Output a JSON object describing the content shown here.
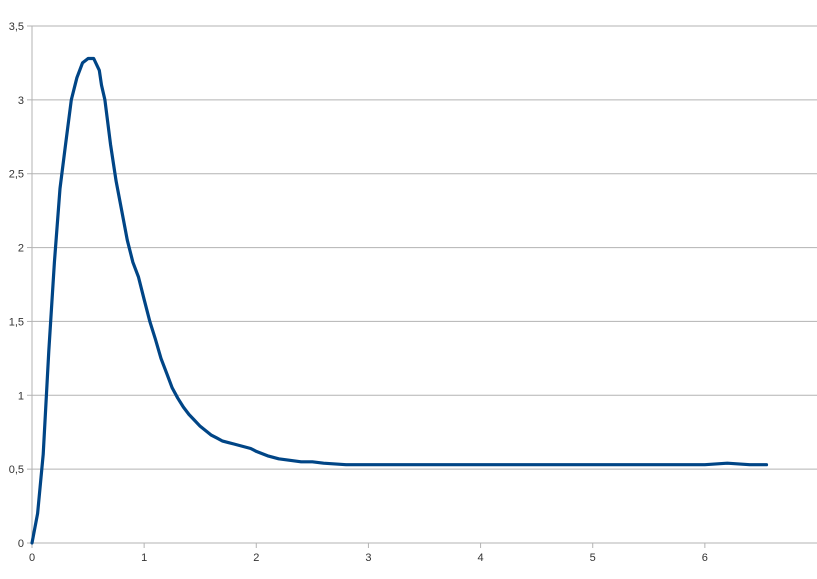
{
  "chart_data": {
    "type": "line",
    "title": "",
    "xlabel": "",
    "ylabel": "",
    "xlim": [
      0,
      7
    ],
    "ylim": [
      0,
      3.5
    ],
    "x_ticks": [
      "0",
      "1",
      "2",
      "3",
      "4",
      "5",
      "6"
    ],
    "y_ticks": [
      "0",
      "0,5",
      "1",
      "1,5",
      "2",
      "2,5",
      "3",
      "3,5"
    ],
    "grid": true,
    "legend": "none",
    "line_color": "#004586",
    "series": [
      {
        "x": [
          0,
          0.05,
          0.1,
          0.15,
          0.2,
          0.25,
          0.3,
          0.35,
          0.4,
          0.45,
          0.5,
          0.55,
          0.6,
          0.62,
          0.65,
          0.7,
          0.75,
          0.8,
          0.85,
          0.9,
          0.95,
          1.0,
          1.05,
          1.1,
          1.15,
          1.2,
          1.25,
          1.3,
          1.35,
          1.4,
          1.45,
          1.5,
          1.55,
          1.6,
          1.65,
          1.7,
          1.75,
          1.8,
          1.85,
          1.9,
          1.95,
          2.0,
          2.1,
          2.2,
          2.3,
          2.4,
          2.5,
          2.6,
          2.8,
          3.0,
          3.2,
          3.4,
          3.6,
          3.8,
          4.0,
          4.2,
          4.4,
          4.6,
          4.8,
          5.0,
          5.2,
          5.4,
          5.6,
          5.8,
          6.0,
          6.2,
          6.4,
          6.55
        ],
        "y": [
          0,
          0.2,
          0.6,
          1.3,
          1.9,
          2.4,
          2.7,
          3.0,
          3.15,
          3.25,
          3.28,
          3.28,
          3.2,
          3.1,
          3.0,
          2.7,
          2.45,
          2.25,
          2.05,
          1.9,
          1.8,
          1.65,
          1.5,
          1.38,
          1.25,
          1.15,
          1.05,
          0.98,
          0.92,
          0.87,
          0.83,
          0.79,
          0.76,
          0.73,
          0.71,
          0.69,
          0.68,
          0.67,
          0.66,
          0.65,
          0.64,
          0.62,
          0.59,
          0.57,
          0.56,
          0.55,
          0.55,
          0.54,
          0.53,
          0.53,
          0.53,
          0.53,
          0.53,
          0.53,
          0.53,
          0.53,
          0.53,
          0.53,
          0.53,
          0.53,
          0.53,
          0.53,
          0.53,
          0.53,
          0.53,
          0.54,
          0.53,
          0.53
        ]
      }
    ]
  }
}
